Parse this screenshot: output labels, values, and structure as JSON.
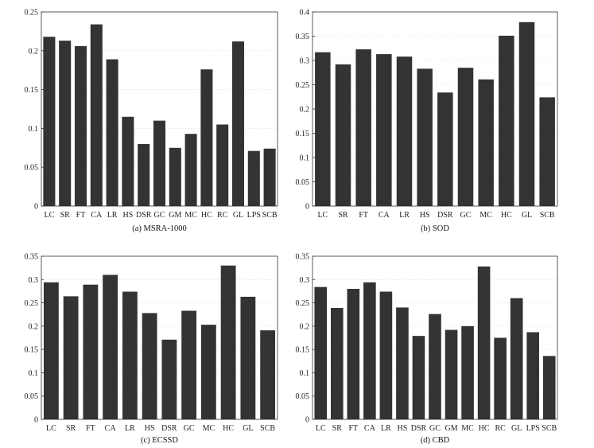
{
  "colors": {
    "bar": "#333333",
    "frame": "#333333",
    "background": "#ffffff"
  },
  "chart_data": [
    {
      "type": "bar",
      "caption": "(a) MSRA-1000",
      "categories": [
        "LC",
        "SR",
        "FT",
        "CA",
        "LR",
        "HS",
        "DSR",
        "GC",
        "GM",
        "MC",
        "HC",
        "RC",
        "GL",
        "LPS",
        "SCB"
      ],
      "category_labels": [
        "LC",
        "SR",
        "FT",
        "CA",
        "LR",
        "HS",
        "DSR",
        "GC",
        "GM",
        "MC",
        "HC",
        "RC",
        "GL",
        "LPS",
        "SCB"
      ],
      "values": [
        0.218,
        0.213,
        0.206,
        0.234,
        0.189,
        0.115,
        0.08,
        0.11,
        0.075,
        0.093,
        0.176,
        0.105,
        0.212,
        0.071,
        0.074
      ],
      "ylim": [
        0,
        0.25
      ],
      "yticks": [
        "0",
        "0.05",
        "0.1",
        "0.15",
        "0.2",
        "0.25"
      ],
      "grid": true
    },
    {
      "type": "bar",
      "caption": "(b) SOD",
      "categories": [
        "LC",
        "SR",
        "FT",
        "CA",
        "LR",
        "HS",
        "DSR",
        "GC",
        "MC",
        "HC",
        "GL",
        "SCB"
      ],
      "category_labels": [
        "LC",
        "SR",
        "FT",
        "CA",
        "LR",
        "HS",
        "DSR",
        "GC",
        "MC",
        "HC",
        "GL",
        "SCB"
      ],
      "values": [
        0.317,
        0.292,
        0.323,
        0.313,
        0.308,
        0.283,
        0.234,
        0.285,
        0.261,
        0.351,
        0.379,
        0.224
      ],
      "ylim": [
        0,
        0.4
      ],
      "yticks": [
        "0",
        "0.05",
        "0.1",
        "0.15",
        "0.2",
        "0.25",
        "0.3",
        "0.35",
        "0.4"
      ],
      "grid": true
    },
    {
      "type": "bar",
      "caption": "(c) ECSSD",
      "categories": [
        "LC",
        "SR",
        "FT",
        "CA",
        "LR",
        "HS",
        "DSR",
        "GC",
        "MC",
        "HC",
        "GL",
        "SCB"
      ],
      "category_labels": [
        "LC",
        "SR",
        "FT",
        "CA",
        "LR",
        "HS",
        "DSR",
        "GC",
        "MC",
        "HC",
        "GL",
        "SCB"
      ],
      "values": [
        0.294,
        0.264,
        0.289,
        0.31,
        0.274,
        0.228,
        0.171,
        0.233,
        0.203,
        0.33,
        0.263,
        0.191
      ],
      "ylim": [
        0,
        0.35
      ],
      "yticks": [
        "0",
        "0.05",
        "0.1",
        "0.15",
        "0.2",
        "0.25",
        "0.3",
        "0.35"
      ],
      "grid": true
    },
    {
      "type": "bar",
      "caption": "(d) CBD",
      "categories": [
        "LC",
        "SR",
        "FT",
        "CA",
        "LR",
        "HS",
        "DSR",
        "GC",
        "GM",
        "MC",
        "HC",
        "RC",
        "GL",
        "LPS",
        "SCB"
      ],
      "category_labels": [
        "LC",
        "SR",
        "FT",
        "CA",
        "LR",
        "HS",
        "DSR",
        "GC",
        "GM",
        "MC",
        "HC",
        "RC",
        "GL",
        "LPS",
        "SCB"
      ],
      "values": [
        0.284,
        0.239,
        0.28,
        0.294,
        0.274,
        0.24,
        0.179,
        0.226,
        0.192,
        0.2,
        0.328,
        0.175,
        0.26,
        0.187,
        0.136
      ],
      "ylim": [
        0,
        0.35
      ],
      "yticks": [
        "0",
        "0.05",
        "0.1",
        "0.15",
        "0.2",
        "0.25",
        "0.3",
        "0.35"
      ],
      "grid": true
    }
  ]
}
